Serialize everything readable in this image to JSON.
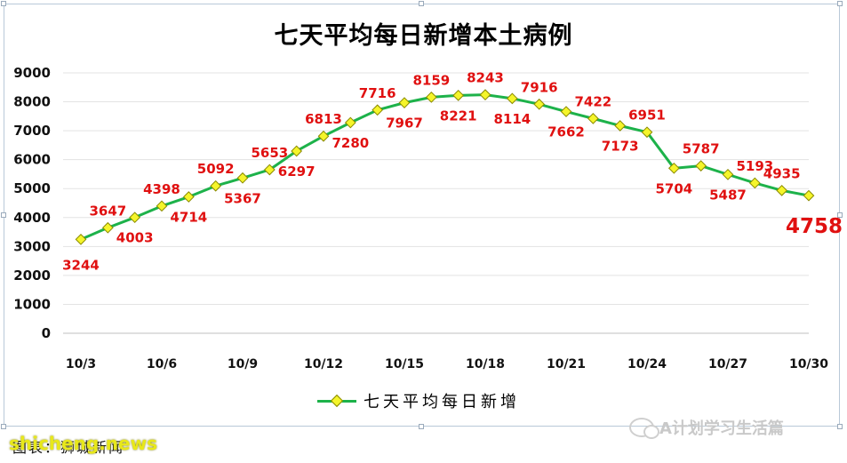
{
  "chart_data": {
    "type": "line",
    "title": "七天平均每日新增本土病例",
    "series": [
      {
        "name": "七天平均每日新增",
        "color": "#1db24a",
        "marker_color": "#f5f52a",
        "values": [
          3244,
          3647,
          4003,
          4398,
          4714,
          5092,
          5367,
          5653,
          6297,
          6813,
          7280,
          7716,
          7967,
          8159,
          8221,
          8243,
          8114,
          7916,
          7662,
          7422,
          7173,
          6951,
          5704,
          5787,
          5487,
          5193,
          4935,
          4758
        ]
      }
    ],
    "x": [
      "10/3",
      "10/4",
      "10/5",
      "10/6",
      "10/7",
      "10/8",
      "10/9",
      "10/10",
      "10/11",
      "10/12",
      "10/13",
      "10/14",
      "10/15",
      "10/16",
      "10/17",
      "10/18",
      "10/19",
      "10/20",
      "10/21",
      "10/22",
      "10/23",
      "10/24",
      "10/25",
      "10/26",
      "10/27",
      "10/28",
      "10/29",
      "10/30"
    ],
    "x_tick_labels": [
      "10/3",
      "10/6",
      "10/9",
      "10/12",
      "10/15",
      "10/18",
      "10/21",
      "10/24",
      "10/27",
      "10/30"
    ],
    "y_ticks": [
      0,
      1000,
      2000,
      3000,
      4000,
      5000,
      6000,
      7000,
      8000,
      9000
    ],
    "ylim": [
      0,
      9000
    ],
    "label_color": "#e01010",
    "last_label_emphasis": true,
    "label_positions": [
      "below",
      "above",
      "below",
      "above",
      "below",
      "above",
      "below",
      "above",
      "below",
      "above",
      "below",
      "above",
      "below",
      "above",
      "below",
      "above",
      "below",
      "above",
      "below",
      "above",
      "below",
      "above",
      "below",
      "above",
      "below",
      "above",
      "above",
      "below"
    ],
    "grid": true,
    "legend_position": "bottom"
  },
  "footer": {
    "source": "图表：狮城新闻",
    "watermark_left": "shicheng.news",
    "watermark_right": "A计划学习生活篇"
  }
}
